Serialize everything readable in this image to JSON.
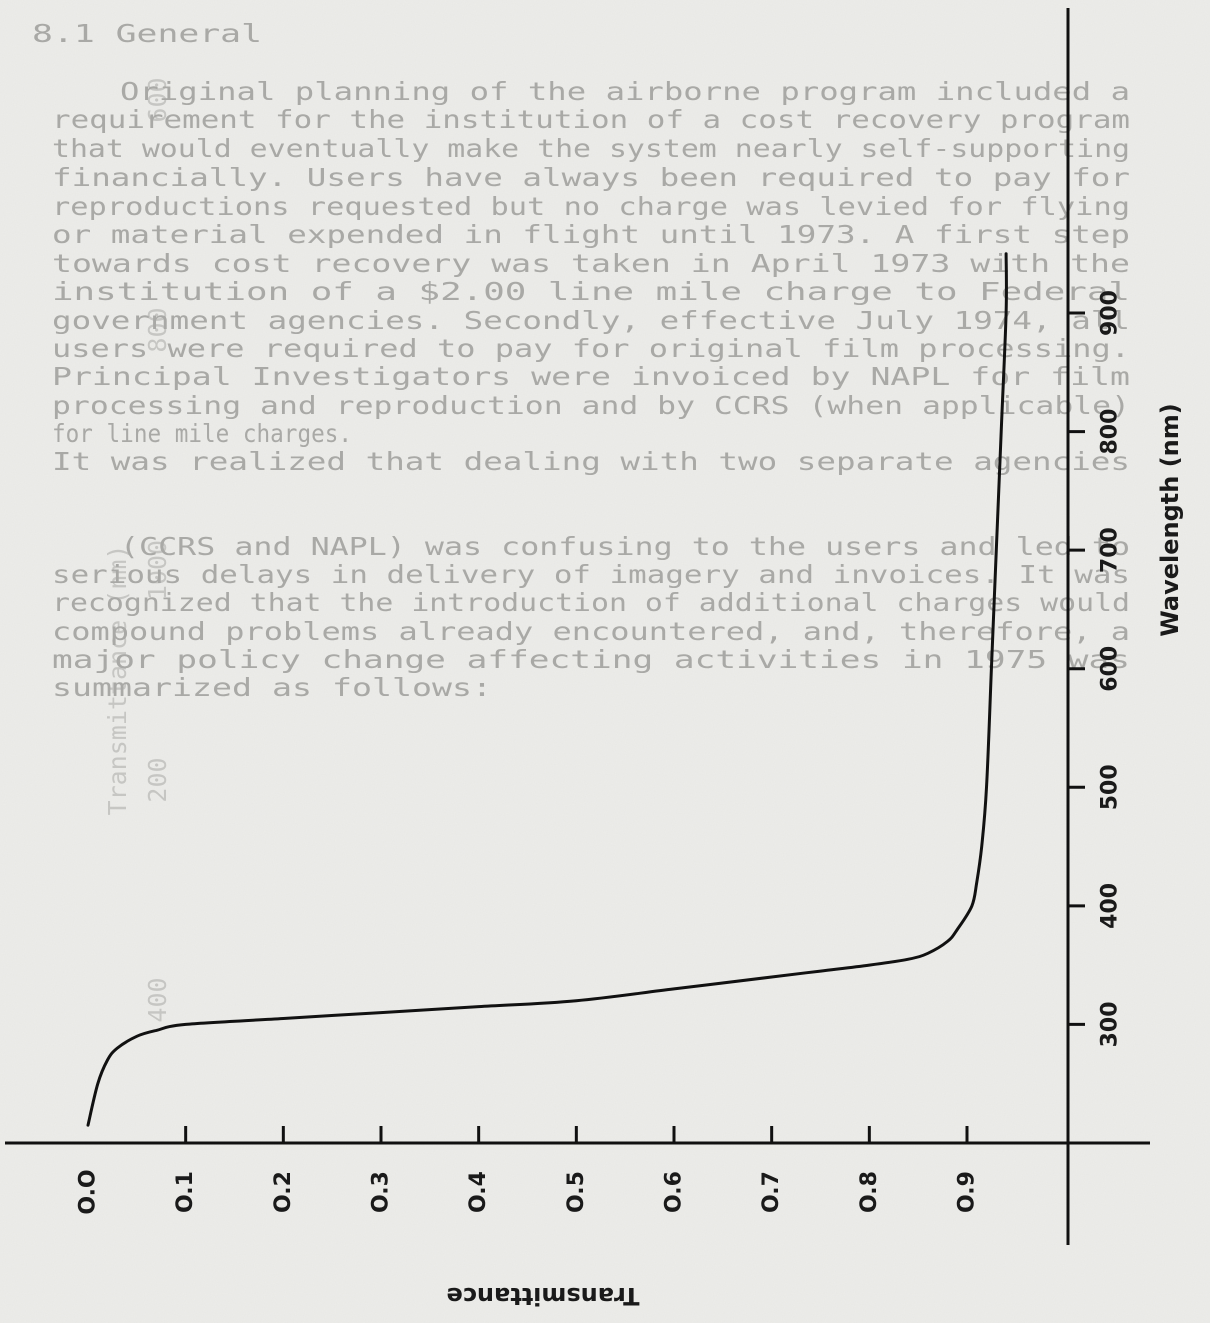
{
  "chart_data": {
    "type": "line",
    "orientation": "rotated-90",
    "title": "",
    "xlabel": "Wavelength (nm)",
    "ylabel": "Transmittance",
    "xlim": [
      200,
      950
    ],
    "ylim": [
      0.0,
      1.0
    ],
    "x_ticks": [
      300,
      400,
      500,
      600,
      700,
      800,
      900
    ],
    "y_ticks": [
      "O.O",
      "O.1",
      "O.2",
      "O.3",
      "O.4",
      "O.5",
      "O.6",
      "O.7",
      "O.8",
      "O.9"
    ],
    "series": [
      {
        "x": [
          215,
          250,
          270,
          280,
          290,
          295,
          300,
          305,
          310,
          315,
          320,
          330,
          340,
          345,
          350,
          355,
          360,
          370,
          380,
          400,
          420,
          450,
          500,
          600,
          700,
          800,
          900,
          950
        ],
        "y": [
          0.0,
          0.01,
          0.02,
          0.03,
          0.05,
          0.07,
          0.1,
          0.2,
          0.3,
          0.4,
          0.5,
          0.6,
          0.7,
          0.75,
          0.8,
          0.84,
          0.86,
          0.88,
          0.89,
          0.905,
          0.91,
          0.915,
          0.92,
          0.925,
          0.93,
          0.935,
          0.94,
          0.94
        ]
      }
    ],
    "grid": false,
    "legend": "none"
  },
  "background_text": [
    "8.1  General",
    "Original planning of the airborne program included a",
    "requirement for the institution of a cost recovery program",
    "that would eventually make the system nearly self-supporting",
    "financially. Users have always been required to pay for",
    "reproductions requested but no charge was levied for flying",
    "or material expended in flight until 1973. A first step",
    "towards cost recovery was taken in April 1973 with the",
    "institution of a $2.00 line mile charge to Federal",
    "government agencies. Secondly, effective July 1974, all",
    "users were required to pay for original film processing.",
    "Principal Investigators were invoiced by NAPL for film",
    "processing and reproduction and by CCRS (when applicable)",
    "for line mile charges.",
    "It was realized that dealing with two separate agencies",
    "(CCRS and NAPL) was confusing to the users and led to",
    "serious delays in delivery of imagery and invoices. It was",
    "recognized that the introduction of additional charges would",
    "compound problems already encountered, and, therefore, a",
    "major policy change affecting activities in 1975 was",
    "summarized as follows:"
  ],
  "bleed_through_scale": {
    "label": "Transmittance (nm)",
    "ticks": [
      "400",
      "200",
      "1000",
      "800",
      "600"
    ]
  }
}
